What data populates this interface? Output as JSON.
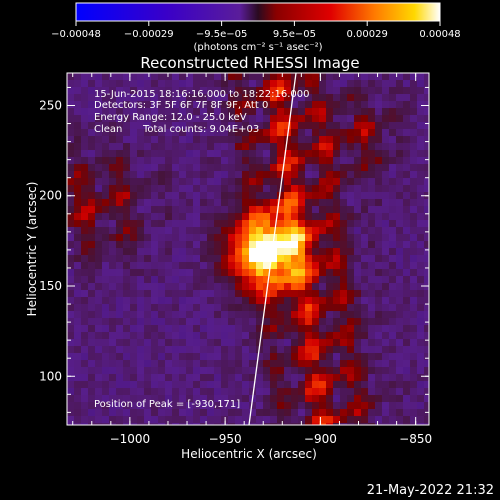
{
  "chart_data": {
    "type": "heatmap",
    "title": "Reconstructed RHESSI Image",
    "xlabel": "Heliocentric X (arcsec)",
    "ylabel": "Heliocentric Y (arcsec)",
    "xlim": [
      -1033,
      -843
    ],
    "ylim": [
      73,
      268
    ],
    "xticks": [
      -1000,
      -950,
      -900,
      -850
    ],
    "xtick_labels": [
      "−1000",
      "−950",
      "−900",
      "−850"
    ],
    "yticks": [
      100,
      150,
      200,
      250
    ],
    "ytick_labels": [
      "100",
      "150",
      "200",
      "250"
    ],
    "peak": [
      -930,
      171
    ],
    "annotations": {
      "time_range": "15-Jun-2015 18:16:16.000 to 18:22:16.000",
      "detectors": "Detectors: 3F 5F 6F 7F 8F 9F, Att 0",
      "energy": "Energy Range: 12.0 - 25.0 keV",
      "method": "Clean",
      "counts": "Total counts: 9.04E+03",
      "peak_position": "Position of Peak = [-930,171]"
    },
    "colorbar": {
      "tick_labels": [
        "−0.00048",
        "−0.00029",
        "−9.5e−05",
        "9.5e−05",
        "0.00029",
        "0.00048"
      ],
      "range": [
        -0.00048,
        0.00048
      ],
      "unit_label": "(photons cm⁻² s⁻¹ asec⁻²)"
    },
    "limb_curve": "white solar limb line",
    "grid": false
  },
  "timestamp": "21-May-2022 21:32"
}
